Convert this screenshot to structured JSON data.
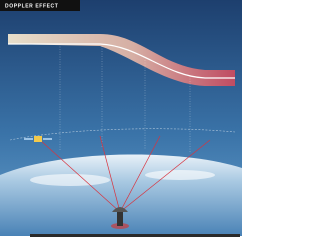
{
  "header": {
    "title": "DOPPLER EFFECT"
  }
}
